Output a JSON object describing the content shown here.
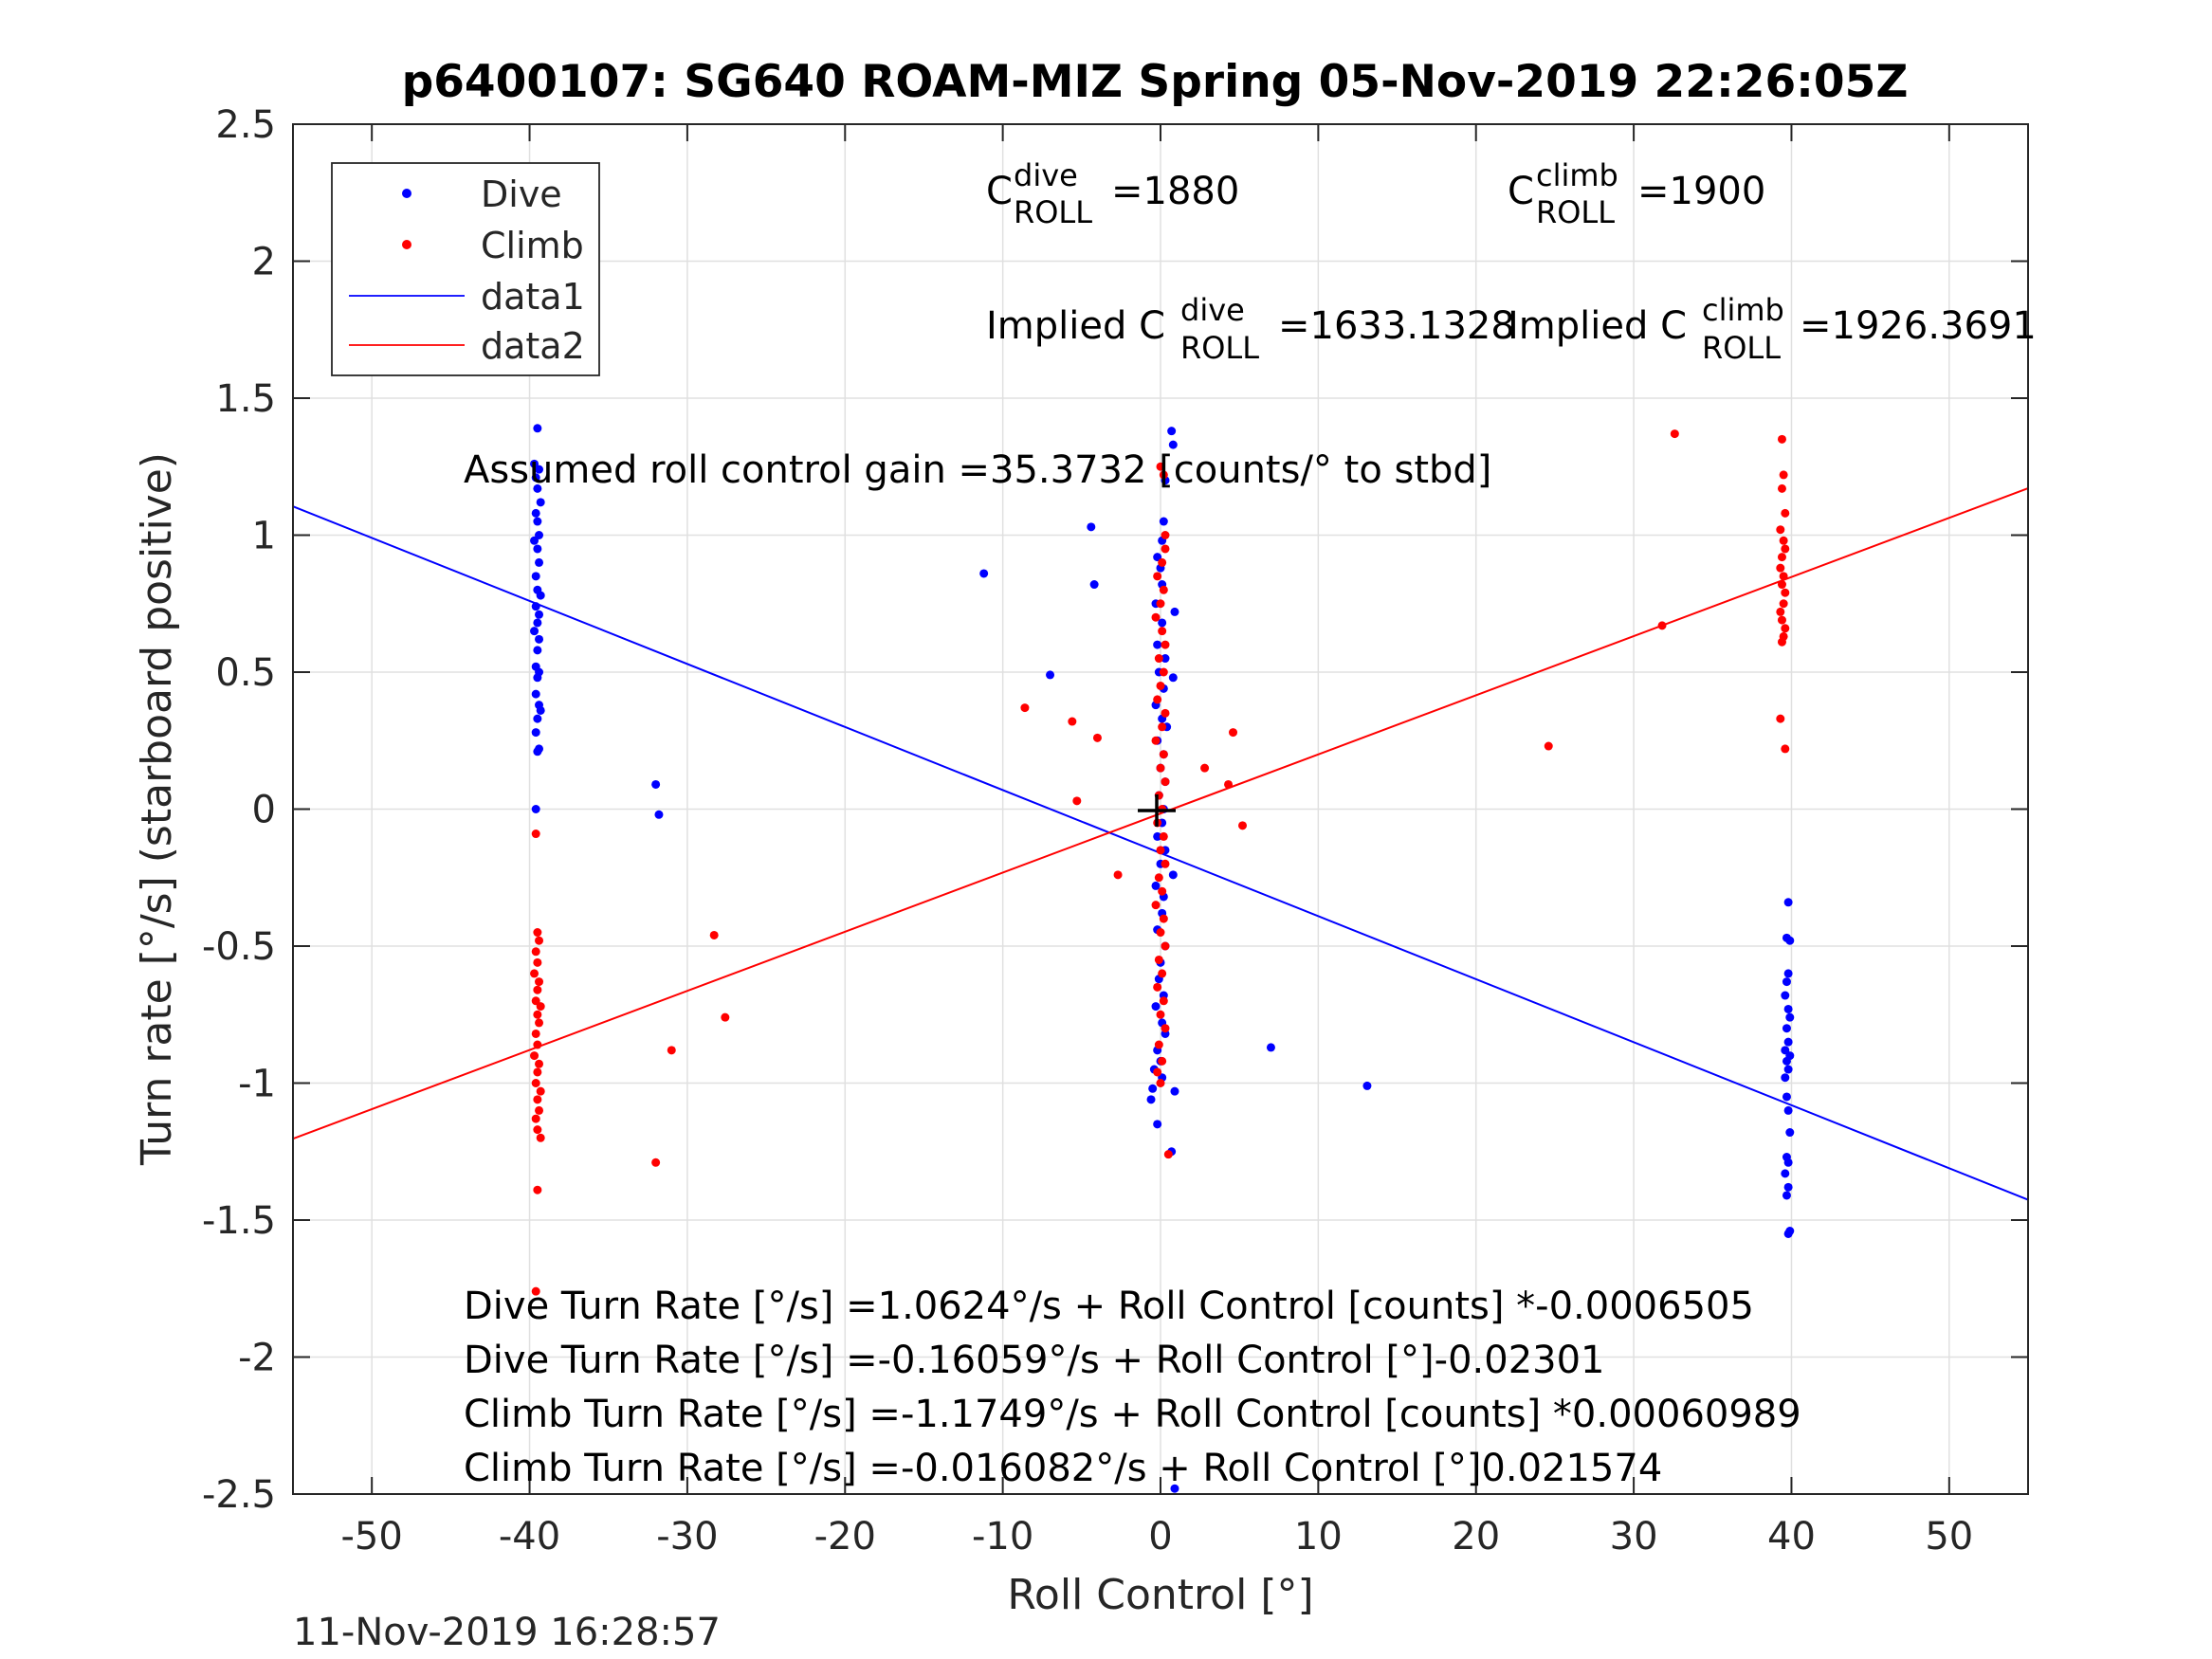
{
  "title": "p6400107: SG640 ROAM-MIZ Spring 05-Nov-2019 22:26:05Z",
  "timestamp": "11-Nov-2019 16:28:57",
  "colors": {
    "dive": "#0000ff",
    "climb": "#ff0000",
    "axes": "#262626",
    "grid": "#e0e0e0"
  },
  "annotations": {
    "c_dive": {
      "base": "C",
      "sup": "dive",
      "sub": "ROLL",
      "value": "=1880"
    },
    "c_climb": {
      "base": "C",
      "sup": "climb",
      "sub": "ROLL",
      "value": "=1900"
    },
    "implied_dive": {
      "prefix": "Implied C",
      "sup": "dive",
      "sub": "ROLL",
      "value": "=1633.1328"
    },
    "implied_climb": {
      "prefix": "Implied C",
      "sup": "climb",
      "sub": "ROLL",
      "value": "=1926.3691"
    },
    "gain": "Assumed roll control gain =35.3732 [counts/° to stbd]",
    "fit_lines": [
      "Dive Turn Rate [°/s] =1.0624°/s + Roll Control [counts] *-0.0006505",
      "Dive Turn Rate [°/s] =-0.16059°/s + Roll Control [°]-0.02301",
      "Climb Turn Rate [°/s] =-1.1749°/s + Roll Control [counts] *0.00060989",
      "Climb Turn Rate [°/s] =-0.016082°/s + Roll Control [°]0.021574"
    ]
  },
  "chart_data": {
    "type": "scatter",
    "title": "p6400107: SG640 ROAM-MIZ Spring 05-Nov-2019 22:26:05Z",
    "xlabel": "Roll Control [°]",
    "ylabel": "Turn rate [°/s] (starboard positive)",
    "xlim": [
      -55,
      55
    ],
    "ylim": [
      -2.5,
      2.5
    ],
    "xticks": [
      -50,
      -40,
      -30,
      -20,
      -10,
      0,
      10,
      20,
      30,
      40,
      50
    ],
    "xtick_labels": [
      "-50",
      "-40",
      "-30",
      "-20",
      "-10",
      "0",
      "10",
      "20",
      "30",
      "40",
      "50"
    ],
    "yticks": [
      2.5,
      2,
      1.5,
      1,
      0.5,
      0,
      -0.5,
      -1,
      -1.5,
      -2,
      -2.5
    ],
    "ytick_labels": [
      "2.5",
      "2",
      "1.5",
      "1",
      "0.5",
      "0",
      "-0.5",
      "-1",
      "-1.5",
      "-2",
      "-2.5"
    ],
    "grid": true,
    "legend_position": "top-left",
    "series": [
      {
        "name": "Dive",
        "kind": "points",
        "color": "#0000ff",
        "points": [
          [
            -39.6,
            1.62
          ],
          [
            -39.5,
            1.39
          ],
          [
            -39.7,
            1.26
          ],
          [
            -39.4,
            1.24
          ],
          [
            -39.6,
            1.21
          ],
          [
            -39.5,
            1.17
          ],
          [
            -39.3,
            1.12
          ],
          [
            -39.6,
            1.08
          ],
          [
            -39.5,
            1.05
          ],
          [
            -39.4,
            1.0
          ],
          [
            -39.7,
            0.98
          ],
          [
            -39.5,
            0.95
          ],
          [
            -39.4,
            0.9
          ],
          [
            -39.6,
            0.85
          ],
          [
            -39.5,
            0.8
          ],
          [
            -39.3,
            0.78
          ],
          [
            -39.6,
            0.74
          ],
          [
            -39.4,
            0.71
          ],
          [
            -39.5,
            0.68
          ],
          [
            -39.7,
            0.65
          ],
          [
            -39.4,
            0.62
          ],
          [
            -39.5,
            0.58
          ],
          [
            -39.6,
            0.52
          ],
          [
            -39.4,
            0.5
          ],
          [
            -39.5,
            0.48
          ],
          [
            -39.6,
            0.42
          ],
          [
            -39.4,
            0.38
          ],
          [
            -39.3,
            0.36
          ],
          [
            -39.5,
            0.33
          ],
          [
            -39.6,
            0.28
          ],
          [
            -39.4,
            0.22
          ],
          [
            -39.5,
            0.21
          ],
          [
            -39.6,
            0.0
          ],
          [
            -32.0,
            0.09
          ],
          [
            -31.8,
            -0.02
          ],
          [
            -11.2,
            0.86
          ],
          [
            -7.0,
            0.49
          ],
          [
            -4.4,
            1.03
          ],
          [
            -4.2,
            0.82
          ],
          [
            0.7,
            1.38
          ],
          [
            0.8,
            1.33
          ],
          [
            0.3,
            1.2
          ],
          [
            0.2,
            1.05
          ],
          [
            0.1,
            0.98
          ],
          [
            -0.2,
            0.92
          ],
          [
            0.0,
            0.88
          ],
          [
            0.1,
            0.82
          ],
          [
            -0.3,
            0.75
          ],
          [
            0.9,
            0.72
          ],
          [
            0.1,
            0.68
          ],
          [
            -0.2,
            0.6
          ],
          [
            0.3,
            0.55
          ],
          [
            -0.1,
            0.5
          ],
          [
            0.8,
            0.48
          ],
          [
            0.2,
            0.44
          ],
          [
            -0.3,
            0.38
          ],
          [
            0.1,
            0.33
          ],
          [
            0.4,
            0.3
          ],
          [
            -0.2,
            0.25
          ],
          [
            0.2,
            0.2
          ],
          [
            0.0,
            0.15
          ],
          [
            0.3,
            0.1
          ],
          [
            -0.1,
            0.05
          ],
          [
            0.2,
            0.0
          ],
          [
            0.1,
            -0.05
          ],
          [
            -0.2,
            -0.1
          ],
          [
            0.3,
            -0.15
          ],
          [
            0.0,
            -0.2
          ],
          [
            0.8,
            -0.24
          ],
          [
            -0.3,
            -0.28
          ],
          [
            0.2,
            -0.32
          ],
          [
            0.1,
            -0.38
          ],
          [
            -0.2,
            -0.44
          ],
          [
            0.3,
            -0.5
          ],
          [
            0.0,
            -0.56
          ],
          [
            -0.1,
            -0.62
          ],
          [
            0.2,
            -0.68
          ],
          [
            -0.3,
            -0.72
          ],
          [
            0.1,
            -0.78
          ],
          [
            0.3,
            -0.82
          ],
          [
            -0.2,
            -0.88
          ],
          [
            0.0,
            -0.92
          ],
          [
            -0.4,
            -0.95
          ],
          [
            0.1,
            -0.98
          ],
          [
            -0.5,
            -1.02
          ],
          [
            -0.6,
            -1.06
          ],
          [
            0.9,
            -1.03
          ],
          [
            -0.2,
            -1.15
          ],
          [
            0.7,
            -1.25
          ],
          [
            0.9,
            -2.48
          ],
          [
            7.0,
            -0.87
          ],
          [
            13.1,
            -1.01
          ],
          [
            39.8,
            -0.34
          ],
          [
            39.7,
            -0.47
          ],
          [
            39.9,
            -0.48
          ],
          [
            39.8,
            -0.6
          ],
          [
            39.7,
            -0.63
          ],
          [
            39.6,
            -0.68
          ],
          [
            39.8,
            -0.73
          ],
          [
            39.9,
            -0.76
          ],
          [
            39.7,
            -0.8
          ],
          [
            39.8,
            -0.85
          ],
          [
            39.6,
            -0.88
          ],
          [
            39.9,
            -0.9
          ],
          [
            39.7,
            -0.92
          ],
          [
            39.8,
            -0.95
          ],
          [
            39.6,
            -0.98
          ],
          [
            39.7,
            -1.05
          ],
          [
            39.8,
            -1.1
          ],
          [
            39.9,
            -1.18
          ],
          [
            39.7,
            -1.27
          ],
          [
            39.8,
            -1.29
          ],
          [
            39.6,
            -1.33
          ],
          [
            39.8,
            -1.38
          ],
          [
            39.7,
            -1.41
          ],
          [
            39.9,
            -1.54
          ],
          [
            39.8,
            -1.55
          ]
        ]
      },
      {
        "name": "Climb",
        "kind": "points",
        "color": "#ff0000",
        "points": [
          [
            -39.6,
            -0.09
          ],
          [
            -39.5,
            -0.45
          ],
          [
            -39.4,
            -0.48
          ],
          [
            -39.6,
            -0.52
          ],
          [
            -39.5,
            -0.56
          ],
          [
            -39.7,
            -0.6
          ],
          [
            -39.4,
            -0.63
          ],
          [
            -39.5,
            -0.66
          ],
          [
            -39.6,
            -0.7
          ],
          [
            -39.3,
            -0.72
          ],
          [
            -39.5,
            -0.75
          ],
          [
            -39.4,
            -0.78
          ],
          [
            -39.6,
            -0.82
          ],
          [
            -39.5,
            -0.86
          ],
          [
            -39.7,
            -0.9
          ],
          [
            -39.4,
            -0.93
          ],
          [
            -39.5,
            -0.96
          ],
          [
            -39.6,
            -1.0
          ],
          [
            -39.3,
            -1.03
          ],
          [
            -39.5,
            -1.06
          ],
          [
            -39.4,
            -1.1
          ],
          [
            -39.6,
            -1.13
          ],
          [
            -39.5,
            -1.17
          ],
          [
            -39.3,
            -1.2
          ],
          [
            -39.5,
            -1.39
          ],
          [
            -39.6,
            -1.76
          ],
          [
            -32.0,
            -1.29
          ],
          [
            -31.0,
            -0.88
          ],
          [
            -28.3,
            -0.46
          ],
          [
            -27.6,
            -0.76
          ],
          [
            -8.6,
            0.37
          ],
          [
            -5.6,
            0.32
          ],
          [
            -4.0,
            0.26
          ],
          [
            -5.3,
            0.03
          ],
          [
            -2.7,
            -0.24
          ],
          [
            0.3,
            0.95
          ],
          [
            0.1,
            0.9
          ],
          [
            -0.2,
            0.85
          ],
          [
            0.2,
            0.8
          ],
          [
            0.0,
            0.75
          ],
          [
            -0.3,
            0.7
          ],
          [
            0.1,
            0.65
          ],
          [
            0.3,
            0.6
          ],
          [
            -0.1,
            0.55
          ],
          [
            0.2,
            0.5
          ],
          [
            0.0,
            0.45
          ],
          [
            -0.2,
            0.4
          ],
          [
            0.3,
            0.35
          ],
          [
            0.1,
            0.3
          ],
          [
            -0.3,
            0.25
          ],
          [
            0.2,
            0.2
          ],
          [
            0.0,
            0.15
          ],
          [
            0.3,
            0.1
          ],
          [
            -0.1,
            0.05
          ],
          [
            0.1,
            0.0
          ],
          [
            -0.2,
            -0.05
          ],
          [
            0.2,
            -0.1
          ],
          [
            0.0,
            -0.15
          ],
          [
            0.3,
            -0.2
          ],
          [
            -0.1,
            -0.25
          ],
          [
            0.1,
            -0.3
          ],
          [
            -0.3,
            -0.35
          ],
          [
            0.2,
            -0.4
          ],
          [
            0.0,
            -0.45
          ],
          [
            0.3,
            -0.5
          ],
          [
            -0.1,
            -0.55
          ],
          [
            0.1,
            -0.6
          ],
          [
            -0.2,
            -0.65
          ],
          [
            0.2,
            -0.7
          ],
          [
            0.0,
            -0.75
          ],
          [
            0.3,
            -0.8
          ],
          [
            -0.1,
            -0.86
          ],
          [
            0.1,
            -0.92
          ],
          [
            -0.2,
            -0.96
          ],
          [
            0.0,
            -1.0
          ],
          [
            0.2,
            1.22
          ],
          [
            0.0,
            1.25
          ],
          [
            0.3,
            1.0
          ],
          [
            0.5,
            -1.26
          ],
          [
            2.8,
            0.15
          ],
          [
            4.3,
            0.09
          ],
          [
            4.6,
            0.28
          ],
          [
            5.2,
            -0.06
          ],
          [
            24.6,
            0.23
          ],
          [
            31.8,
            0.67
          ],
          [
            32.6,
            1.37
          ],
          [
            39.4,
            1.35
          ],
          [
            39.5,
            1.22
          ],
          [
            39.4,
            1.17
          ],
          [
            39.6,
            1.08
          ],
          [
            39.3,
            1.02
          ],
          [
            39.5,
            0.98
          ],
          [
            39.6,
            0.95
          ],
          [
            39.4,
            0.92
          ],
          [
            39.3,
            0.88
          ],
          [
            39.5,
            0.85
          ],
          [
            39.4,
            0.82
          ],
          [
            39.6,
            0.79
          ],
          [
            39.5,
            0.75
          ],
          [
            39.3,
            0.72
          ],
          [
            39.4,
            0.69
          ],
          [
            39.6,
            0.66
          ],
          [
            39.5,
            0.63
          ],
          [
            39.4,
            0.61
          ],
          [
            39.3,
            0.33
          ],
          [
            39.6,
            0.22
          ]
        ]
      },
      {
        "name": "data1",
        "kind": "line",
        "color": "#0000ff",
        "x": [
          -55,
          55
        ],
        "y": [
          1.105,
          -1.426
        ]
      },
      {
        "name": "data2",
        "kind": "line",
        "color": "#ff0000",
        "x": [
          -55,
          55
        ],
        "y": [
          -1.203,
          1.171
        ]
      }
    ]
  }
}
